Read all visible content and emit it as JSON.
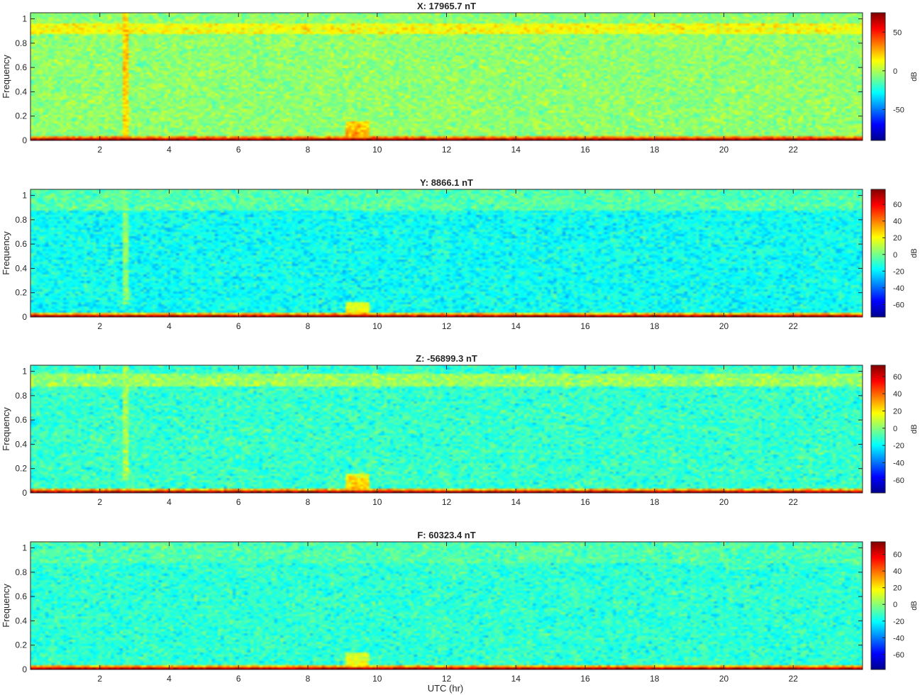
{
  "figure": {
    "xlabel": "UTC (hr)"
  },
  "chart_data": [
    {
      "type": "heatmap",
      "title": "X: 17965.7 nT",
      "ylabel": "Frequency",
      "xlim": [
        0,
        24
      ],
      "ylim": [
        0,
        1.05
      ],
      "xticks": [
        2,
        4,
        6,
        8,
        10,
        12,
        14,
        16,
        18,
        20,
        22
      ],
      "yticks": [
        0,
        0.2,
        0.4,
        0.6,
        0.8,
        1
      ],
      "colorbar": {
        "label": "dB",
        "limits": [
          -90,
          75
        ],
        "ticks": [
          -50,
          0,
          50
        ]
      },
      "base_level_db": -5,
      "bands": [
        {
          "freq": [
            0,
            0.01
          ],
          "level_db": 68
        },
        {
          "freq": [
            0.01,
            0.04
          ],
          "level_db": 32
        },
        {
          "freq": [
            0.88,
            0.97
          ],
          "level_db": 12
        }
      ],
      "features": [
        {
          "type": "vertical-line",
          "hour": 2.75,
          "freq": [
            0,
            1.05
          ],
          "level_db": 18
        },
        {
          "type": "patch",
          "hours": [
            9.1,
            9.8
          ],
          "freq": [
            0,
            0.16
          ],
          "level_db": 30
        }
      ],
      "grid": false
    },
    {
      "type": "heatmap",
      "title": "Y: 8866.1 nT",
      "ylabel": "Frequency",
      "xlim": [
        0,
        24
      ],
      "ylim": [
        0,
        1.05
      ],
      "xticks": [
        2,
        4,
        6,
        8,
        10,
        12,
        14,
        16,
        18,
        20,
        22
      ],
      "yticks": [
        0,
        0.2,
        0.4,
        0.6,
        0.8,
        1
      ],
      "colorbar": {
        "label": "dB",
        "limits": [
          -75,
          78
        ],
        "ticks": [
          -60,
          -40,
          -20,
          0,
          20,
          40,
          60
        ]
      },
      "base_level_db": -16,
      "bands": [
        {
          "freq": [
            0,
            0.01
          ],
          "level_db": 68
        },
        {
          "freq": [
            0.01,
            0.03
          ],
          "level_db": 30
        },
        {
          "freq": [
            0.88,
            1.05
          ],
          "level_db": -5
        }
      ],
      "features": [
        {
          "type": "vertical-line",
          "hour": 2.75,
          "freq": [
            0.1,
            1.05
          ],
          "level_db": 2
        },
        {
          "type": "patch",
          "hours": [
            9.1,
            9.8
          ],
          "freq": [
            0,
            0.12
          ],
          "level_db": 22
        }
      ],
      "grid": false
    },
    {
      "type": "heatmap",
      "title": "Z: -56899.3 nT",
      "ylabel": "Frequency",
      "xlim": [
        0,
        24
      ],
      "ylim": [
        0,
        1.05
      ],
      "xticks": [
        2,
        4,
        6,
        8,
        10,
        12,
        14,
        16,
        18,
        20,
        22
      ],
      "yticks": [
        0,
        0.2,
        0.4,
        0.6,
        0.8,
        1
      ],
      "colorbar": {
        "label": "dB",
        "limits": [
          -75,
          73
        ],
        "ticks": [
          -60,
          -40,
          -20,
          0,
          20,
          40,
          60
        ]
      },
      "base_level_db": -12,
      "bands": [
        {
          "freq": [
            0,
            0.01
          ],
          "level_db": 66
        },
        {
          "freq": [
            0.01,
            0.04
          ],
          "level_db": 28
        },
        {
          "freq": [
            0.88,
            0.98
          ],
          "level_db": 3
        }
      ],
      "features": [
        {
          "type": "vertical-line",
          "hour": 2.75,
          "freq": [
            0.1,
            1.05
          ],
          "level_db": 4
        },
        {
          "type": "patch",
          "hours": [
            9.1,
            9.8
          ],
          "freq": [
            0,
            0.16
          ],
          "level_db": 26
        }
      ],
      "grid": false
    },
    {
      "type": "heatmap",
      "title": "F: 60323.4 nT",
      "ylabel": "Frequency",
      "xlim": [
        0,
        24
      ],
      "ylim": [
        0,
        1.05
      ],
      "xticks": [
        2,
        4,
        6,
        8,
        10,
        12,
        14,
        16,
        18,
        20,
        22
      ],
      "yticks": [
        0,
        0.2,
        0.4,
        0.6,
        0.8,
        1
      ],
      "colorbar": {
        "label": "dB",
        "limits": [
          -78,
          75
        ],
        "ticks": [
          -60,
          -40,
          -20,
          0,
          20,
          40,
          60
        ]
      },
      "base_level_db": -14,
      "bands": [
        {
          "freq": [
            0,
            0.01
          ],
          "level_db": 66
        },
        {
          "freq": [
            0.01,
            0.03
          ],
          "level_db": 28
        },
        {
          "freq": [
            0.88,
            1.05
          ],
          "level_db": -9
        }
      ],
      "features": [
        {
          "type": "patch",
          "hours": [
            9.1,
            9.8
          ],
          "freq": [
            0,
            0.14
          ],
          "level_db": 18
        }
      ],
      "grid": false
    }
  ]
}
